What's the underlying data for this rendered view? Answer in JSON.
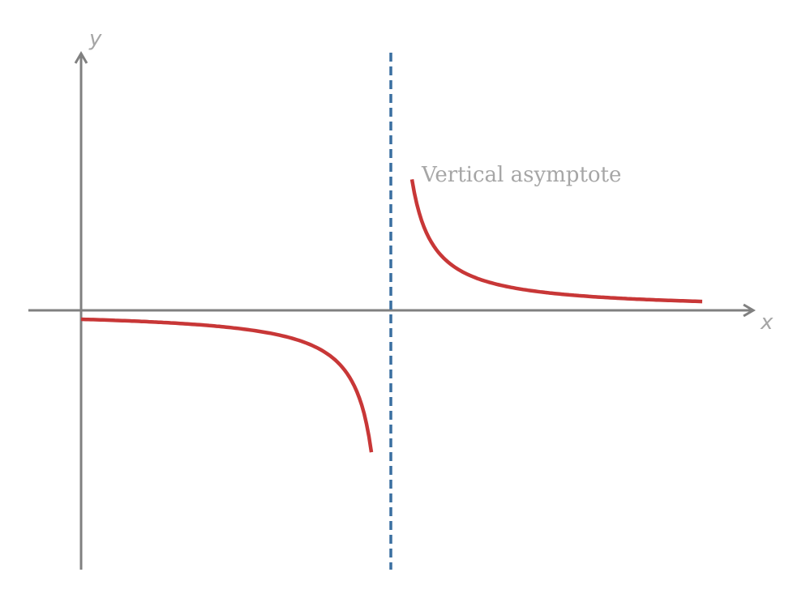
{
  "axes": {
    "y_label": "y",
    "x_label": "x"
  },
  "annotation": "Vertical asymptote"
}
